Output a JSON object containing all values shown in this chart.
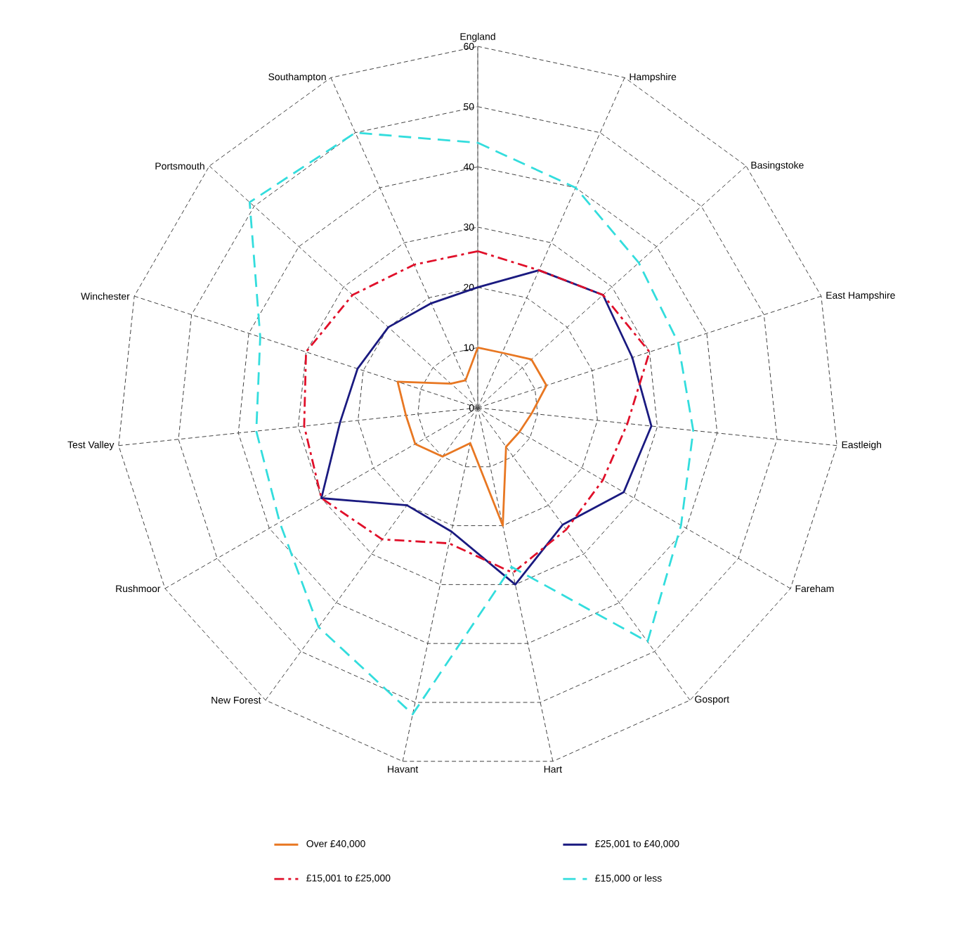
{
  "chart_data": {
    "type": "radar",
    "categories": [
      "England",
      "Hampshire",
      "Basingstoke",
      "East Hampshire",
      "Eastleigh",
      "Fareham",
      "Gosport",
      "Hart",
      "Havant",
      "New Forest",
      "Rushmoor",
      "Test Valley",
      "Winchester",
      "Portsmouth",
      "Southampton"
    ],
    "ylim": [
      0,
      60
    ],
    "yticks": [
      0,
      10,
      20,
      30,
      40,
      50,
      60
    ],
    "grid": true,
    "legend": "bottom",
    "marker": "none",
    "series": [
      {
        "name": "Over £40,000",
        "color": "#e87722",
        "line_style": "solid",
        "values": [
          10,
          10,
          12,
          12,
          9,
          8,
          8,
          20,
          6,
          10,
          12,
          12,
          14,
          6,
          5
        ]
      },
      {
        "name": "£25,001 to £40,000",
        "color": "#1a1a80",
        "line_style": "solid",
        "values": [
          20,
          25,
          28,
          27,
          29,
          28,
          24,
          30,
          21,
          20,
          30,
          23,
          21,
          20,
          19
        ]
      },
      {
        "name": "£15,001 to £25,000",
        "color": "#e0102a",
        "line_style": "dashdotted",
        "values": [
          26,
          25,
          28,
          30,
          25,
          24,
          25,
          28,
          23,
          27,
          30,
          29,
          30,
          28,
          26
        ]
      },
      {
        "name": "£15,000 or less",
        "color": "#33dddd",
        "line_style": "dashed",
        "values": [
          44,
          40,
          36,
          35,
          36,
          39,
          48,
          27,
          52,
          45,
          38,
          37,
          38,
          51,
          50
        ]
      }
    ]
  }
}
